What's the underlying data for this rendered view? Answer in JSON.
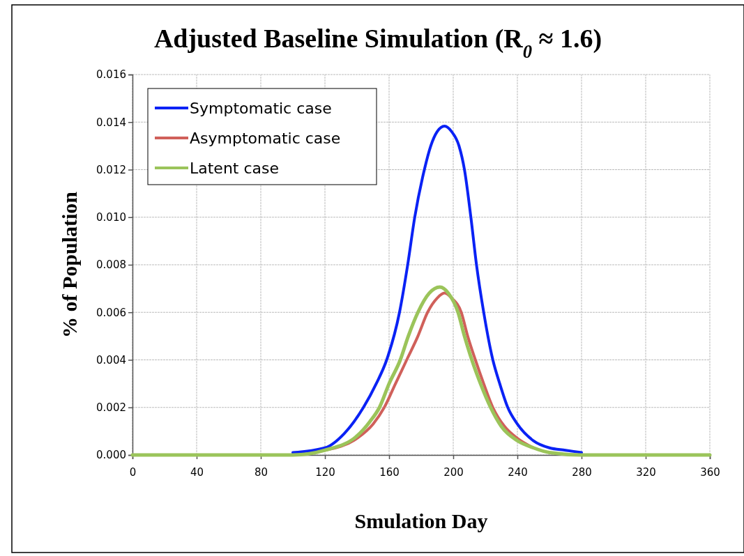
{
  "chart_data": {
    "type": "line",
    "title": "Adjusted Baseline Simulation (R$_{0}$ ≈ 1.6)",
    "xlabel": "Smulation Day",
    "ylabel": "% of Population",
    "xlim": [
      0,
      360
    ],
    "xticks": [
      0,
      40,
      80,
      120,
      160,
      200,
      240,
      280,
      320,
      360
    ],
    "ylim": [
      0,
      0.016
    ],
    "yticks": [
      {
        "value": 0,
        "label": "0.000"
      },
      {
        "value": 0.002,
        "label": "0.002"
      },
      {
        "value": 0.004,
        "label": "0.004"
      },
      {
        "value": 0.006,
        "label": "0.006"
      },
      {
        "value": 0.008,
        "label": "0.008"
      },
      {
        "value": 0.01,
        "label": "0.010"
      },
      {
        "value": 0.012,
        "label": "0.012"
      },
      {
        "value": 0.014,
        "label": "0.014"
      },
      {
        "value": 0.016,
        "label": "0.016"
      }
    ],
    "grid": true,
    "legend": "top left",
    "line_style": "solid",
    "marker": "none",
    "series": [
      {
        "name": "Symptomatic case",
        "color": "#0a22f5",
        "x": [
          100,
          120,
          132,
          144,
          152,
          158.5,
          166.5,
          171.6,
          176,
          182,
          186,
          190,
          194.6,
          199,
          203.6,
          207,
          211,
          214.5,
          219,
          224.7,
          229,
          234,
          240,
          250,
          260,
          270,
          280
        ],
        "values": [
          0.0001,
          0.0003,
          0.0009,
          0.002,
          0.003,
          0.004,
          0.006,
          0.008,
          0.01,
          0.012,
          0.013,
          0.0136,
          0.01383,
          0.0136,
          0.013,
          0.012,
          0.01,
          0.008,
          0.006,
          0.004,
          0.003,
          0.002,
          0.0013,
          0.0006,
          0.0003,
          0.0002,
          0.0001
        ]
      },
      {
        "name": "Asymptomatic case",
        "color": "#d0605a",
        "x": [
          120,
          140,
          150,
          157,
          164,
          171,
          178,
          184,
          190,
          194.6,
          199,
          205,
          209,
          213.8,
          219,
          224.7,
          232,
          240,
          250
        ],
        "values": [
          0.0002,
          0.0007,
          0.0013,
          0.002,
          0.003,
          0.004,
          0.005,
          0.006,
          0.0066,
          0.00681,
          0.0066,
          0.006,
          0.005,
          0.004,
          0.003,
          0.002,
          0.0012,
          0.0007,
          0.0003
        ]
      },
      {
        "name": "Latent case",
        "color": "#9bc45a",
        "x": [
          0,
          80,
          100,
          120,
          140,
          148,
          154,
          160,
          167,
          172,
          178,
          185,
          191.7,
          197,
          203,
          207,
          211.6,
          217,
          223.3,
          230,
          240,
          250,
          260,
          280,
          360
        ],
        "values": [
          0,
          0,
          0,
          0.0002,
          0.0008,
          0.0014,
          0.002,
          0.003,
          0.004,
          0.005,
          0.006,
          0.0068,
          0.00706,
          0.0068,
          0.006,
          0.005,
          0.004,
          0.003,
          0.002,
          0.0012,
          0.0006,
          0.0003,
          0.0001,
          0,
          0
        ]
      }
    ]
  }
}
